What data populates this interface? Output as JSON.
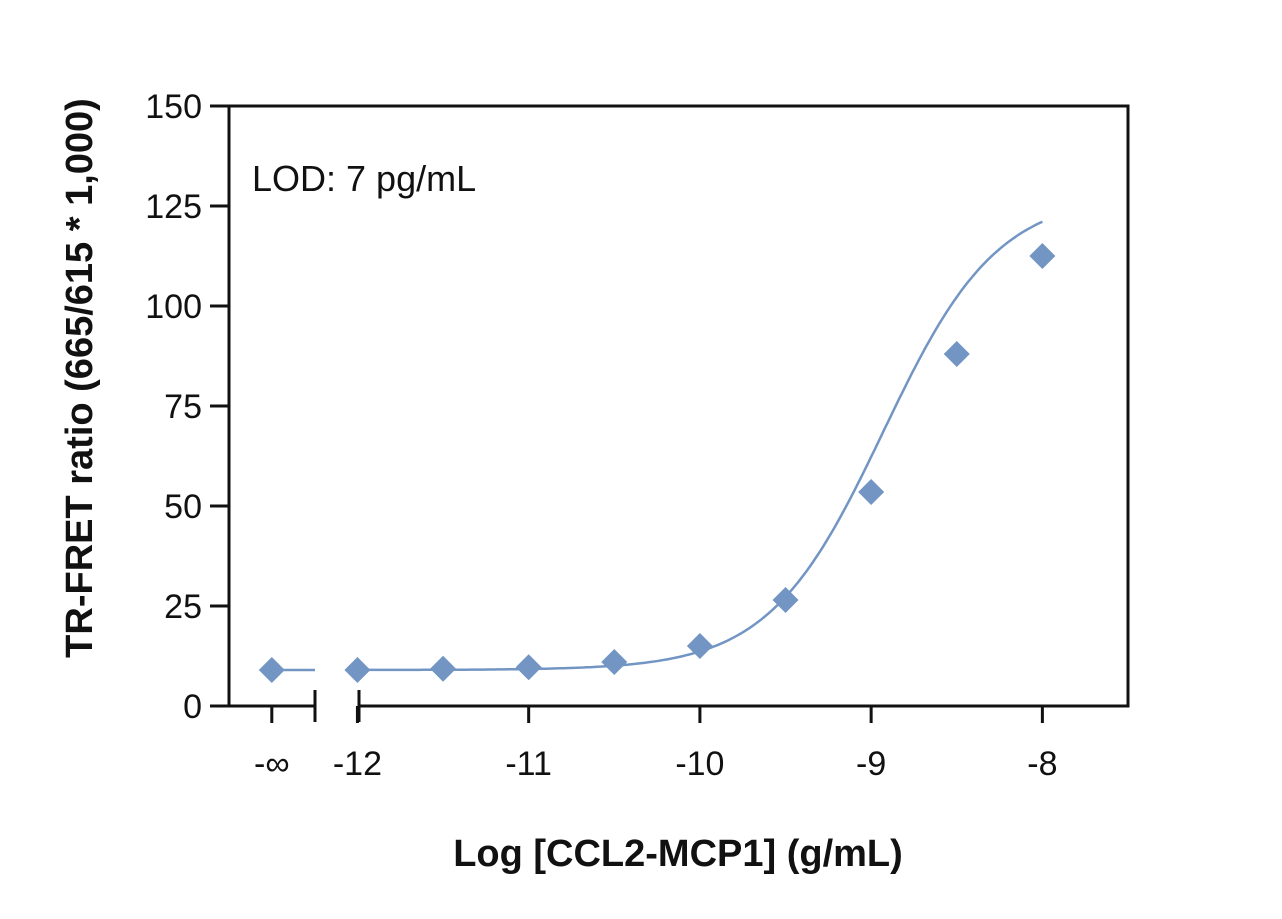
{
  "chart_data": {
    "type": "scatter",
    "title": "",
    "xlabel": "Log [CCL2-MCP1] (g/mL)",
    "ylabel": "TR-FRET ratio (665/615 * 1,000)",
    "annotation": "LOD: 7 pg/mL",
    "x_ticks": [
      "-∞",
      "-12",
      "-11",
      "-10",
      "-9",
      "-8"
    ],
    "x_tick_values": [
      -12.5,
      -12,
      -11,
      -10,
      -9,
      -8
    ],
    "y_ticks": [
      "0",
      "25",
      "50",
      "75",
      "100",
      "125",
      "150"
    ],
    "y_tick_values": [
      0,
      25,
      50,
      75,
      100,
      125,
      150
    ],
    "xlim": [
      -12.75,
      -7.5
    ],
    "ylim": [
      0,
      150
    ],
    "axis_break": "between -∞ and -12",
    "grid": false,
    "legend": "none",
    "series": [
      {
        "marker": "diamond",
        "color": "#7295c4",
        "blank": {
          "x": "-∞",
          "y": 9
        },
        "x": [
          -12,
          -11.5,
          -11,
          -10.5,
          -10,
          -9.5,
          -9,
          -8.5,
          -8
        ],
        "y": [
          9,
          9.3,
          9.7,
          11,
          15,
          26.5,
          53.5,
          88,
          112.5
        ]
      }
    ],
    "fit_curve": {
      "type": "sigmoid",
      "bottom": 9,
      "top": 128,
      "log_ec50": -8.93,
      "hill": 1.3
    }
  }
}
